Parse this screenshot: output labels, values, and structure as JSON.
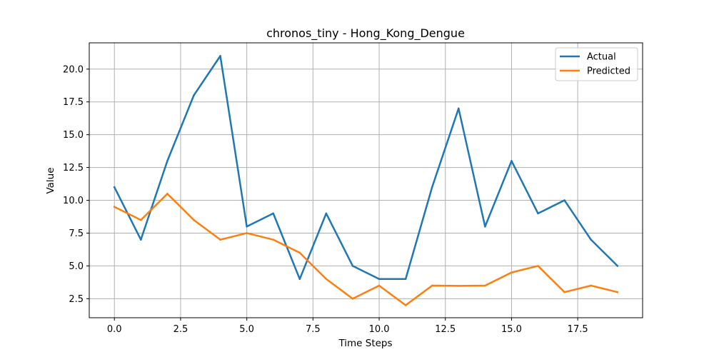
{
  "chart_data": {
    "type": "line",
    "title": "chronos_tiny - Hong_Kong_Dengue",
    "xlabel": "Time Steps",
    "ylabel": "Value",
    "x": [
      0,
      1,
      2,
      3,
      4,
      5,
      6,
      7,
      8,
      9,
      10,
      11,
      12,
      13,
      14,
      15,
      16,
      17,
      18,
      19
    ],
    "xlim": [
      -0.95,
      19.95
    ],
    "ylim": [
      1.05,
      22.0
    ],
    "xticks": [
      0.0,
      2.5,
      5.0,
      7.5,
      10.0,
      12.5,
      15.0,
      17.5
    ],
    "xtick_labels": [
      "0.0",
      "2.5",
      "5.0",
      "7.5",
      "10.0",
      "12.5",
      "15.0",
      "17.5"
    ],
    "yticks": [
      2.5,
      5.0,
      7.5,
      10.0,
      12.5,
      15.0,
      17.5,
      20.0
    ],
    "ytick_labels": [
      "2.5",
      "5.0",
      "7.5",
      "10.0",
      "12.5",
      "15.0",
      "17.5",
      "20.0"
    ],
    "grid": true,
    "legend_position": "top-right",
    "series": [
      {
        "name": "Actual",
        "color": "#1f77b4",
        "values": [
          11,
          7,
          13,
          18,
          21,
          8,
          9,
          4,
          9,
          5,
          4,
          4,
          11,
          17,
          8,
          13,
          9,
          10,
          7,
          5
        ]
      },
      {
        "name": "Predicted",
        "color": "#ff7f0e",
        "values": [
          9.5,
          8.5,
          10.5,
          8.5,
          7.0,
          7.5,
          7.0,
          6.0,
          4.0,
          2.5,
          3.5,
          2.0,
          3.5,
          3.48,
          3.5,
          4.5,
          5.0,
          3.0,
          3.5,
          3.0
        ]
      }
    ]
  }
}
